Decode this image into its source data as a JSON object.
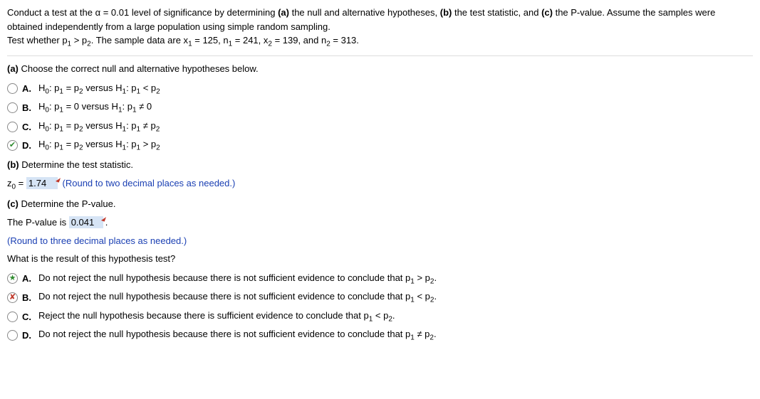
{
  "intro": {
    "line1_a": "Conduct a test at the α = ",
    "alpha": "0.01",
    "line1_b": " level of significance by determining ",
    "bold_a": "(a)",
    "line1_c": " the null and alternative hypotheses, ",
    "bold_b": "(b)",
    "line1_d": " the test statistic, and ",
    "bold_c": "(c)",
    "line1_e": " the P-value. Assume the samples were obtained independently from a large population using simple random sampling.",
    "line2_a": "Test whether p",
    "line2_b": " > p",
    "line2_c": ". The sample data are x",
    "eq1": " = 125, n",
    "eq2": " = 241, x",
    "eq3": " = 139, and n",
    "eq4": " = 313."
  },
  "partA": {
    "label": "(a)",
    "prompt": " Choose the correct null and alternative hypotheses below.",
    "options": [
      {
        "letter": "A.",
        "h0": "H",
        "h0s": "0",
        "c1": ": p",
        "s1": "1",
        "c2": " = p",
        "s2": "2",
        "v": " versus H",
        "vs": "1",
        "c3": ": p",
        "s3": "1",
        "op": " < p",
        "s4": "2",
        "mark": ""
      },
      {
        "letter": "B.",
        "h0": "H",
        "h0s": "0",
        "c1": ": p",
        "s1": "1",
        "c2": " = 0 versus H",
        "s2": "",
        "v": "",
        "vs": "1",
        "c3": ": p",
        "s3": "1",
        "op": " ≠ 0",
        "s4": "",
        "mark": ""
      },
      {
        "letter": "C.",
        "h0": "H",
        "h0s": "0",
        "c1": ": p",
        "s1": "1",
        "c2": " = p",
        "s2": "2",
        "v": " versus H",
        "vs": "1",
        "c3": ": p",
        "s3": "1",
        "op": " ≠ p",
        "s4": "2",
        "mark": ""
      },
      {
        "letter": "D.",
        "h0": "H",
        "h0s": "0",
        "c1": ": p",
        "s1": "1",
        "c2": " = p",
        "s2": "2",
        "v": " versus H",
        "vs": "1",
        "c3": ": p",
        "s3": "1",
        "op": " > p",
        "s4": "2",
        "mark": "check"
      }
    ]
  },
  "partB": {
    "label": "(b)",
    "prompt": " Determine the test statistic.",
    "z_a": "z",
    "z_b": " = ",
    "value": "1.74",
    "note": "(Round to two decimal places as needed.)"
  },
  "partC": {
    "label": "(c)",
    "prompt": " Determine the P-value.",
    "line_a": "The P-value is  ",
    "value": "0.041",
    "dot": ".",
    "note": "(Round to three decimal places as needed.)",
    "resultQ": "What is the result of this hypothesis test?",
    "options": [
      {
        "letter": "A.",
        "t1": "Do not reject the null hypothesis because there is not sufficient evidence to conclude that p",
        "s1": "1",
        "op": " > p",
        "s2": "2",
        "end": ".",
        "mark": "star"
      },
      {
        "letter": "B.",
        "t1": "Do not reject the null hypothesis because there is not sufficient evidence to conclude that p",
        "s1": "1",
        "op": " < p",
        "s2": "2",
        "end": ".",
        "mark": "cross"
      },
      {
        "letter": "C.",
        "t1": "Reject the null hypothesis because there is sufficient evidence to conclude that p",
        "s1": "1",
        "op": " < p",
        "s2": "2",
        "end": ".",
        "mark": ""
      },
      {
        "letter": "D.",
        "t1": "Do not reject the null hypothesis because there is not sufficient evidence to conclude that p",
        "s1": "1",
        "op": " ≠ p",
        "s2": "2",
        "end": ".",
        "mark": ""
      }
    ]
  }
}
